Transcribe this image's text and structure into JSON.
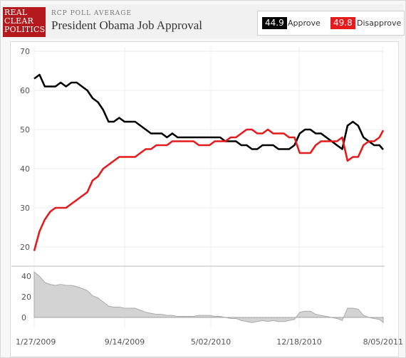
{
  "header": {
    "logo": [
      "REAL",
      "CLEAR",
      "POLITICS"
    ],
    "kicker": "RCP POLL AVERAGE",
    "title": "President Obama Job Approval"
  },
  "legend": {
    "approve_value": "44.9",
    "approve_label": "Approve",
    "disapprove_value": "49.8",
    "disapprove_label": "Disapprove"
  },
  "colors": {
    "approve": "#000000",
    "disapprove": "#e41a1c",
    "spread": "#d3d3d3",
    "brand": "#b3191d"
  },
  "chart_data": {
    "type": "line",
    "x_tick_labels": [
      "1/27/2009",
      "9/14/2009",
      "5/02/2010",
      "12/18/2010",
      "8/05/2011"
    ],
    "xlim": [
      "2009-01-27",
      "2011-08-05"
    ],
    "ylim": [
      15,
      70
    ],
    "y_ticks": [
      20,
      30,
      40,
      50,
      60,
      70
    ],
    "grid": true,
    "series": [
      {
        "name": "Approve",
        "color": "#000000",
        "points": [
          [
            "2009-01-27",
            63
          ],
          [
            "2009-02-10",
            64
          ],
          [
            "2009-02-24",
            61
          ],
          [
            "2009-03-10",
            61
          ],
          [
            "2009-03-24",
            61
          ],
          [
            "2009-04-07",
            62
          ],
          [
            "2009-04-21",
            61
          ],
          [
            "2009-05-05",
            62
          ],
          [
            "2009-05-19",
            62
          ],
          [
            "2009-06-02",
            61
          ],
          [
            "2009-06-16",
            60
          ],
          [
            "2009-06-30",
            58
          ],
          [
            "2009-07-14",
            57
          ],
          [
            "2009-07-28",
            55
          ],
          [
            "2009-08-11",
            52
          ],
          [
            "2009-08-25",
            52
          ],
          [
            "2009-09-08",
            53
          ],
          [
            "2009-09-22",
            52
          ],
          [
            "2009-10-06",
            52
          ],
          [
            "2009-10-20",
            52
          ],
          [
            "2009-11-03",
            51
          ],
          [
            "2009-11-17",
            50
          ],
          [
            "2009-12-01",
            49
          ],
          [
            "2009-12-15",
            49
          ],
          [
            "2009-12-29",
            49
          ],
          [
            "2010-01-12",
            48
          ],
          [
            "2010-01-26",
            49
          ],
          [
            "2010-02-09",
            48
          ],
          [
            "2010-02-23",
            48
          ],
          [
            "2010-03-09",
            48
          ],
          [
            "2010-03-23",
            48
          ],
          [
            "2010-04-06",
            48
          ],
          [
            "2010-04-20",
            48
          ],
          [
            "2010-05-04",
            48
          ],
          [
            "2010-05-18",
            48
          ],
          [
            "2010-06-01",
            48
          ],
          [
            "2010-06-15",
            47
          ],
          [
            "2010-06-29",
            47
          ],
          [
            "2010-07-13",
            47
          ],
          [
            "2010-07-27",
            46
          ],
          [
            "2010-08-10",
            46
          ],
          [
            "2010-08-24",
            45
          ],
          [
            "2010-09-07",
            45
          ],
          [
            "2010-09-21",
            46
          ],
          [
            "2010-10-05",
            46
          ],
          [
            "2010-10-19",
            46
          ],
          [
            "2010-11-02",
            45
          ],
          [
            "2010-11-16",
            45
          ],
          [
            "2010-11-30",
            45
          ],
          [
            "2010-12-14",
            46
          ],
          [
            "2010-12-28",
            49
          ],
          [
            "2011-01-11",
            50
          ],
          [
            "2011-01-25",
            50
          ],
          [
            "2011-02-08",
            49
          ],
          [
            "2011-02-22",
            49
          ],
          [
            "2011-03-08",
            48
          ],
          [
            "2011-03-22",
            47
          ],
          [
            "2011-04-05",
            46
          ],
          [
            "2011-04-19",
            45
          ],
          [
            "2011-05-03",
            51
          ],
          [
            "2011-05-17",
            52
          ],
          [
            "2011-05-31",
            51
          ],
          [
            "2011-06-14",
            48
          ],
          [
            "2011-06-28",
            47
          ],
          [
            "2011-07-12",
            46
          ],
          [
            "2011-07-26",
            46
          ],
          [
            "2011-08-05",
            44.9
          ]
        ]
      },
      {
        "name": "Disapprove",
        "color": "#e41a1c",
        "points": [
          [
            "2009-01-27",
            19
          ],
          [
            "2009-02-10",
            24
          ],
          [
            "2009-02-24",
            27
          ],
          [
            "2009-03-10",
            29
          ],
          [
            "2009-03-24",
            30
          ],
          [
            "2009-04-07",
            30
          ],
          [
            "2009-04-21",
            30
          ],
          [
            "2009-05-05",
            31
          ],
          [
            "2009-05-19",
            32
          ],
          [
            "2009-06-02",
            33
          ],
          [
            "2009-06-16",
            34
          ],
          [
            "2009-06-30",
            37
          ],
          [
            "2009-07-14",
            38
          ],
          [
            "2009-07-28",
            40
          ],
          [
            "2009-08-11",
            41
          ],
          [
            "2009-08-25",
            42
          ],
          [
            "2009-09-08",
            43
          ],
          [
            "2009-09-22",
            43
          ],
          [
            "2009-10-06",
            43
          ],
          [
            "2009-10-20",
            43
          ],
          [
            "2009-11-03",
            44
          ],
          [
            "2009-11-17",
            45
          ],
          [
            "2009-12-01",
            45
          ],
          [
            "2009-12-15",
            46
          ],
          [
            "2009-12-29",
            46
          ],
          [
            "2010-01-12",
            46
          ],
          [
            "2010-01-26",
            47
          ],
          [
            "2010-02-09",
            47
          ],
          [
            "2010-02-23",
            47
          ],
          [
            "2010-03-09",
            47
          ],
          [
            "2010-03-23",
            47
          ],
          [
            "2010-04-06",
            46
          ],
          [
            "2010-04-20",
            46
          ],
          [
            "2010-05-04",
            46
          ],
          [
            "2010-05-18",
            47
          ],
          [
            "2010-06-01",
            47
          ],
          [
            "2010-06-15",
            47
          ],
          [
            "2010-06-29",
            48
          ],
          [
            "2010-07-13",
            48
          ],
          [
            "2010-07-27",
            49
          ],
          [
            "2010-08-10",
            50
          ],
          [
            "2010-08-24",
            50
          ],
          [
            "2010-09-07",
            49
          ],
          [
            "2010-09-21",
            49
          ],
          [
            "2010-10-05",
            50
          ],
          [
            "2010-10-19",
            49
          ],
          [
            "2010-11-02",
            49
          ],
          [
            "2010-11-16",
            49
          ],
          [
            "2010-11-30",
            48
          ],
          [
            "2010-12-14",
            48
          ],
          [
            "2010-12-28",
            44
          ],
          [
            "2011-01-11",
            44
          ],
          [
            "2011-01-25",
            44
          ],
          [
            "2011-02-08",
            46
          ],
          [
            "2011-02-22",
            47
          ],
          [
            "2011-03-08",
            47
          ],
          [
            "2011-03-22",
            47
          ],
          [
            "2011-04-05",
            47
          ],
          [
            "2011-04-19",
            48
          ],
          [
            "2011-05-03",
            42
          ],
          [
            "2011-05-17",
            43
          ],
          [
            "2011-05-31",
            43
          ],
          [
            "2011-06-14",
            46
          ],
          [
            "2011-06-28",
            47
          ],
          [
            "2011-07-12",
            47
          ],
          [
            "2011-07-26",
            48
          ],
          [
            "2011-08-05",
            49.8
          ]
        ]
      }
    ],
    "spread_panel": {
      "y_ticks": [
        40,
        20,
        0
      ],
      "ylim": [
        -8,
        45
      ],
      "type": "area"
    }
  }
}
